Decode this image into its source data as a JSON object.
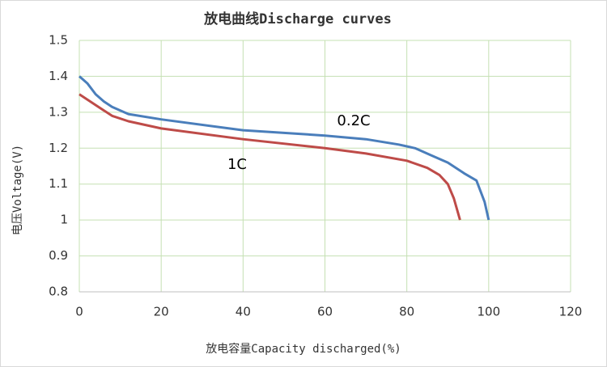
{
  "chart_data": {
    "type": "line",
    "title": "放电曲线Discharge curves",
    "x_label": "放电容量Capacity discharged(%)",
    "y_label": "电压Voltage(V)",
    "xlim": [
      0,
      120
    ],
    "xticks": [
      0,
      20,
      40,
      60,
      80,
      100,
      120
    ],
    "ylim": [
      0.8,
      1.5
    ],
    "yticks": [
      1.5,
      1.4,
      1.3,
      1.2,
      1.1,
      1,
      0.9,
      0.8
    ],
    "grid": true,
    "series": [
      {
        "name": "0.2C",
        "color": "#4a7ebb",
        "x": [
          0,
          2,
          4,
          6,
          8,
          12,
          20,
          40,
          60,
          70,
          78,
          82,
          86,
          90,
          94,
          97,
          99,
          100
        ],
        "values": [
          1.4,
          1.38,
          1.35,
          1.33,
          1.315,
          1.295,
          1.28,
          1.25,
          1.235,
          1.225,
          1.21,
          1.2,
          1.18,
          1.16,
          1.13,
          1.11,
          1.05,
          1.0
        ]
      },
      {
        "name": "1C",
        "color": "#be4b48",
        "x": [
          0,
          4,
          8,
          12,
          20,
          40,
          60,
          70,
          80,
          85,
          88,
          90,
          91.5,
          92.5,
          93
        ],
        "values": [
          1.35,
          1.32,
          1.29,
          1.275,
          1.255,
          1.225,
          1.2,
          1.185,
          1.165,
          1.145,
          1.125,
          1.1,
          1.06,
          1.02,
          1.0
        ]
      }
    ]
  }
}
